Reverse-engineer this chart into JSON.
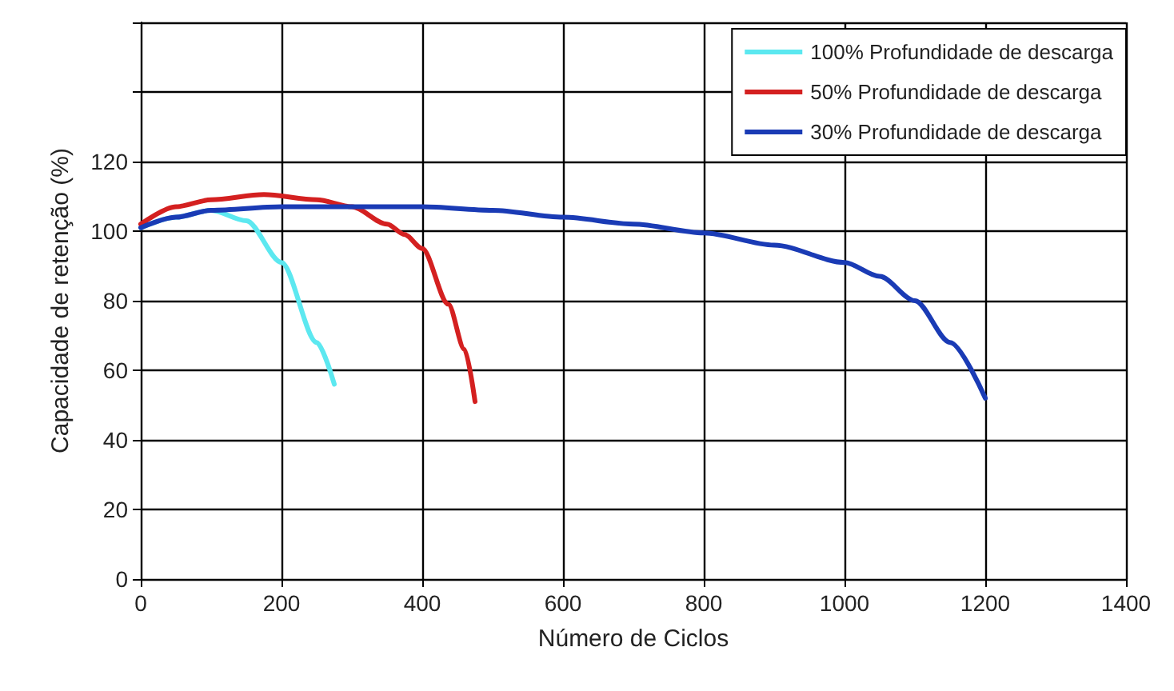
{
  "chart_data": {
    "type": "line",
    "xlabel": "Número de Ciclos",
    "ylabel": "Capacidade de retenção (%)",
    "xlim": [
      0,
      1400
    ],
    "xticks": [
      0,
      200,
      400,
      600,
      800,
      1000,
      1200,
      1400
    ],
    "ylim": [
      0,
      160
    ],
    "yticks": [
      0,
      20,
      40,
      60,
      80,
      100,
      120,
      {
        "value": 140,
        "label": null
      },
      {
        "value": 160,
        "label": null
      }
    ],
    "grid": true,
    "legend": "top right",
    "marker": "none",
    "line_style": "solid",
    "series": [
      {
        "name": "100% Profundidade de descarga",
        "color": "#5ce8f0",
        "x": [
          0,
          50,
          100,
          150,
          200,
          250,
          275
        ],
        "values": [
          101,
          104,
          106,
          103,
          91,
          68,
          56
        ]
      },
      {
        "name": "50% Profundidade de descarga",
        "color": "#d42020",
        "x": [
          0,
          50,
          100,
          175,
          250,
          300,
          350,
          375,
          400,
          437,
          460,
          475
        ],
        "values": [
          102,
          107,
          109,
          110.5,
          109,
          107,
          102,
          99,
          95,
          79,
          66,
          51
        ]
      },
      {
        "name": "30% Profundidade de descarga",
        "color": "#1a3bb5",
        "x": [
          0,
          50,
          100,
          200,
          400,
          500,
          600,
          700,
          800,
          900,
          1000,
          1050,
          1100,
          1150,
          1200
        ],
        "values": [
          101,
          104,
          106,
          107,
          107,
          106,
          104,
          102,
          99.5,
          96,
          91,
          87,
          80,
          68,
          52
        ]
      }
    ]
  }
}
